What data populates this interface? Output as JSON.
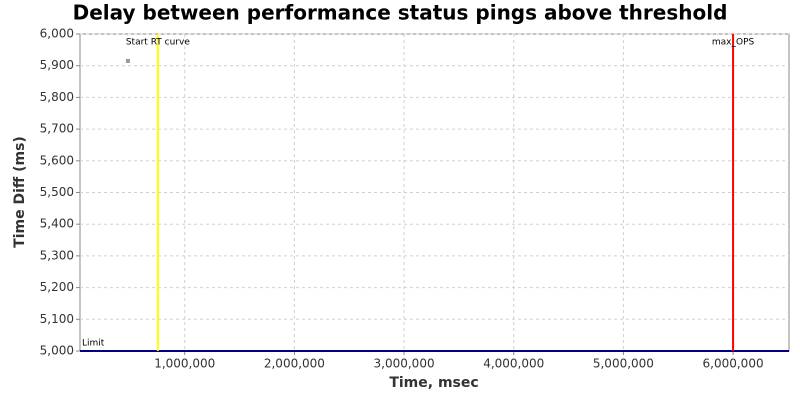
{
  "chart_data": {
    "type": "scatter",
    "title": "Delay between performance status pings above threshold",
    "xlabel": "Time, msec",
    "ylabel": "Time Diff (ms)",
    "xlim": [
      45000,
      6510000
    ],
    "ylim": [
      5000,
      6000
    ],
    "xticks": [
      {
        "value": 1000000,
        "label": "1,000,000"
      },
      {
        "value": 2000000,
        "label": "2,000,000"
      },
      {
        "value": 3000000,
        "label": "3,000,000"
      },
      {
        "value": 4000000,
        "label": "4,000,000"
      },
      {
        "value": 5000000,
        "label": "5,000,000"
      },
      {
        "value": 6000000,
        "label": "6,000,000"
      }
    ],
    "yticks": [
      {
        "value": 5000,
        "label": "5,000"
      },
      {
        "value": 5100,
        "label": "5,100"
      },
      {
        "value": 5200,
        "label": "5,200"
      },
      {
        "value": 5300,
        "label": "5,300"
      },
      {
        "value": 5400,
        "label": "5,400"
      },
      {
        "value": 5500,
        "label": "5,500"
      },
      {
        "value": 5600,
        "label": "5,600"
      },
      {
        "value": 5700,
        "label": "5,700"
      },
      {
        "value": 5800,
        "label": "5,800"
      },
      {
        "value": 5900,
        "label": "5,900"
      },
      {
        "value": 6000,
        "label": "6,000"
      }
    ],
    "grid": true,
    "series": [
      {
        "color": "#999999",
        "x": [
          482000
        ],
        "values": [
          5915
        ]
      }
    ],
    "vlines": [
      {
        "value": 755000,
        "label": "Start RT curve",
        "color": "#ffff00"
      },
      {
        "value": 6000000,
        "label": "max_OPS",
        "color": "#ff0000"
      }
    ],
    "hlines": [
      {
        "value": 5000,
        "label": "Limit",
        "color": "#000080"
      }
    ]
  }
}
